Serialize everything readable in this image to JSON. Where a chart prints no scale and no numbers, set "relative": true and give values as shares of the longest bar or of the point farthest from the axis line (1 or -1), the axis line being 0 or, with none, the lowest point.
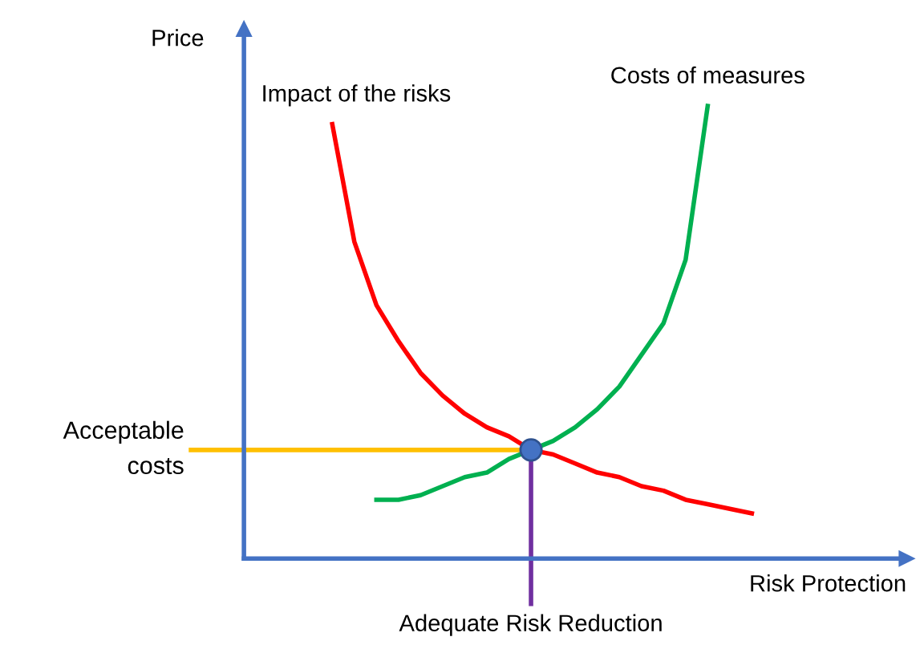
{
  "chart_data": {
    "type": "line",
    "relative": true,
    "xlabel": "Risk Protection",
    "ylabel": "Price",
    "tick_labels": false,
    "legend": false,
    "categories": [
      null,
      null,
      null,
      null,
      null,
      null,
      null,
      null,
      null,
      null,
      null,
      null,
      null,
      null,
      null,
      null,
      null,
      null,
      null,
      null,
      null,
      null,
      null,
      null,
      null,
      null,
      null,
      null,
      null,
      null,
      null
    ],
    "series": [
      {
        "name": "Impact of the risks",
        "color": "#ff0000",
        "values": [
          null,
          null,
          null,
          null,
          0.96,
          0.7,
          0.56,
          0.48,
          0.41,
          0.36,
          0.32,
          0.29,
          0.27,
          0.24,
          0.23,
          0.21,
          0.19,
          0.18,
          0.16,
          0.15,
          0.13,
          0.12,
          0.11,
          0.1,
          null,
          null,
          null,
          null,
          null,
          null,
          null
        ]
      },
      {
        "name": "Costs of measures",
        "color": "#00b050",
        "values": [
          null,
          null,
          null,
          null,
          null,
          null,
          0.13,
          0.13,
          0.14,
          0.16,
          0.18,
          0.19,
          0.22,
          0.24,
          0.26,
          0.29,
          0.33,
          0.38,
          0.45,
          0.52,
          0.66,
          1,
          null,
          null,
          null,
          null,
          null,
          null,
          null,
          null,
          null
        ]
      }
    ],
    "ref_lines": [
      {
        "axis": "y",
        "value": 0.24,
        "label": "Acceptable\ncosts",
        "color": "#ffc000"
      }
    ],
    "annotations": [
      "Adequate Risk Reduction"
    ]
  }
}
